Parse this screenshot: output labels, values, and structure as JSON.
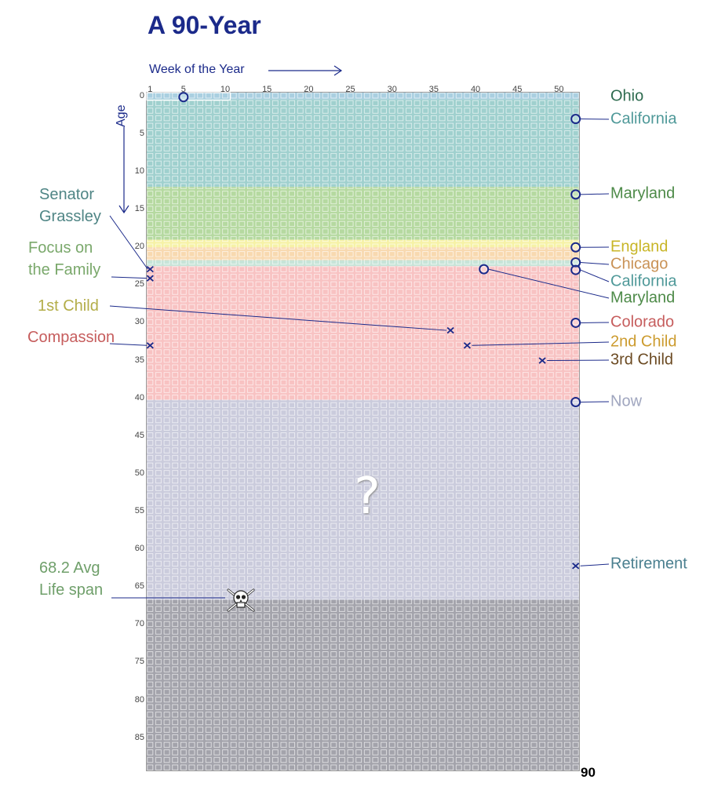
{
  "title": "A 90-Year",
  "axes": {
    "x_label": "Week of the Year",
    "y_label": "Age",
    "x_ticks": [
      "1",
      "5",
      "10",
      "15",
      "20",
      "25",
      "30",
      "35",
      "40",
      "45",
      "50"
    ],
    "y_ticks": [
      "0",
      "5",
      "10",
      "15",
      "20",
      "25",
      "30",
      "35",
      "40",
      "45",
      "50",
      "55",
      "60",
      "65",
      "70",
      "75",
      "80",
      "85"
    ],
    "end_label": "90",
    "weeks_per_year": 52,
    "years": 90
  },
  "bands": [
    {
      "from": 0,
      "to": 1,
      "color": "#a9cfe0"
    },
    {
      "from": 1,
      "to": 12.6,
      "color": "#9fd0ce"
    },
    {
      "from": 12.6,
      "to": 19.6,
      "color": "#b5d9a0"
    },
    {
      "from": 19.6,
      "to": 20.6,
      "color": "#f6f2a6"
    },
    {
      "from": 20.6,
      "to": 22.3,
      "color": "#f8d9b0"
    },
    {
      "from": 22.3,
      "to": 23.1,
      "color": "#c7e4d8"
    },
    {
      "from": 23.1,
      "to": 40.8,
      "color": "#f8c2c2"
    },
    {
      "from": 40.8,
      "to": 67.3,
      "color": "#cacbdc"
    },
    {
      "from": 67.3,
      "to": 90,
      "color": "#a3a3ab"
    }
  ],
  "markers": [
    {
      "type": "circle",
      "week": 5,
      "age": 0.2
    },
    {
      "type": "circle",
      "week": 52,
      "age": 3.1
    },
    {
      "type": "circle",
      "week": 52,
      "age": 13.1
    },
    {
      "type": "circle",
      "week": 52,
      "age": 20.1
    },
    {
      "type": "circle",
      "week": 52,
      "age": 22.1
    },
    {
      "type": "circle",
      "week": 52,
      "age": 23.1
    },
    {
      "type": "circle",
      "week": 41,
      "age": 23.0
    },
    {
      "type": "circle",
      "week": 52,
      "age": 30.1
    },
    {
      "type": "circle",
      "week": 52,
      "age": 40.6
    },
    {
      "type": "cross",
      "week": 1,
      "age": 23.0
    },
    {
      "type": "cross",
      "week": 1,
      "age": 24.2
    },
    {
      "type": "cross",
      "week": 1,
      "age": 33.1
    },
    {
      "type": "cross",
      "week": 37,
      "age": 31.1
    },
    {
      "type": "cross",
      "week": 39,
      "age": 33.1
    },
    {
      "type": "cross",
      "week": 48,
      "age": 35.1
    },
    {
      "type": "cross",
      "week": 52,
      "age": 62.3
    }
  ],
  "labels_right": [
    {
      "text": "Ohio",
      "color": "#2e6b4f",
      "week": null,
      "age": null
    },
    {
      "text": "California",
      "color": "#4f9999",
      "week": 52,
      "age": 3.1
    },
    {
      "text": "Maryland",
      "color": "#4d8a48",
      "week": 52,
      "age": 13.1
    },
    {
      "text": "England",
      "color": "#c8b526",
      "week": 52,
      "age": 20.1
    },
    {
      "text": "Chicago",
      "color": "#c99256",
      "week": 52,
      "age": 22.1
    },
    {
      "text": "California",
      "color": "#4f9999",
      "week": 52,
      "age": 23.1
    },
    {
      "text": "Maryland",
      "color": "#4d8a48",
      "week": 41,
      "age": 23.0
    },
    {
      "text": "Colorado",
      "color": "#c65d5d",
      "week": 52,
      "age": 30.1
    },
    {
      "text": "2nd Child",
      "color": "#cc9b2e",
      "week": 39,
      "age": 33.1
    },
    {
      "text": "3rd Child",
      "color": "#6b4a22",
      "week": 48,
      "age": 35.1
    },
    {
      "text": "Now",
      "color": "#a0a6bf",
      "week": 52,
      "age": 40.6
    },
    {
      "text": "Retirement",
      "color": "#4a7f8f",
      "week": 52,
      "age": 62.3
    }
  ],
  "labels_left": [
    {
      "lines": [
        "Senator",
        "Grassley"
      ],
      "color": "#4f8585",
      "week": 1,
      "age": 23.0
    },
    {
      "lines": [
        "Focus on",
        "the Family"
      ],
      "color": "#7aa86b",
      "week": 1,
      "age": 24.2
    },
    {
      "lines": [
        "1st Child"
      ],
      "color": "#b3ad48",
      "week": 37,
      "age": 31.1
    },
    {
      "lines": [
        "Compassion"
      ],
      "color": "#c65d5d",
      "week": 1,
      "age": 33.1
    },
    {
      "lines": [
        "68.2 Avg",
        "Life span"
      ],
      "color": "#6f9f6a",
      "week": 12,
      "age": 66.8
    }
  ],
  "question_mark": "?",
  "icons": {
    "death": "skull-crossbones-icon"
  },
  "colors": {
    "title": "#1b2a8a",
    "marker": "#1b2a8a",
    "leader": "#1b2a8a"
  }
}
